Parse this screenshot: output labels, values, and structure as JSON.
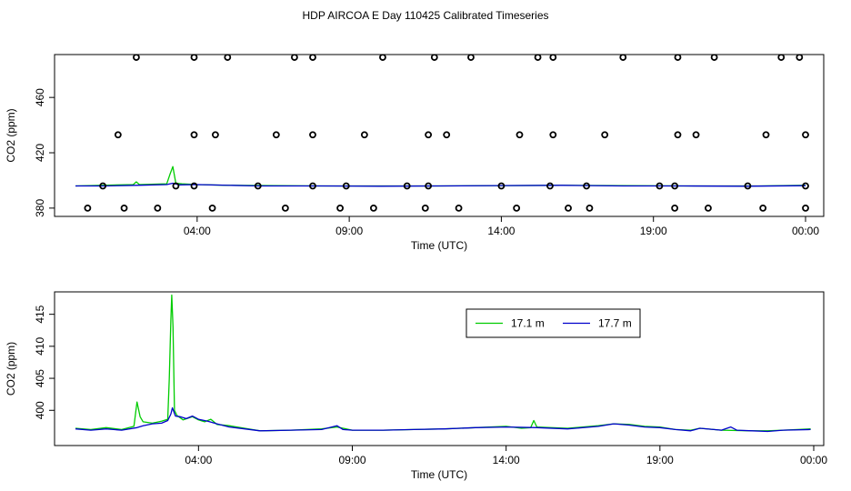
{
  "title": "HDP AIRCOA E  Day 110425  Calibrated Timeseries",
  "colors": {
    "series_green": "#00cc00",
    "series_blue": "#0000cc",
    "axis": "#000000"
  },
  "chart_data": [
    {
      "type": "scatter+line",
      "xlabel": "Time (UTC)",
      "ylabel": "CO2 (ppm)",
      "x_unit": "hours UTC",
      "xlim": [
        0,
        24
      ],
      "ylim": [
        374,
        491
      ],
      "x_ticks": [
        {
          "value": 4,
          "label": "04:00"
        },
        {
          "value": 9,
          "label": "09:00"
        },
        {
          "value": 14,
          "label": "14:00"
        },
        {
          "value": 19,
          "label": "19:00"
        },
        {
          "value": 24,
          "label": "00:00"
        }
      ],
      "y_ticks": [
        {
          "value": 380,
          "label": "380"
        },
        {
          "value": 420,
          "label": "420"
        },
        {
          "value": 460,
          "label": "460"
        }
      ],
      "calibration_points": [
        [
          0.4,
          380
        ],
        [
          1.6,
          380
        ],
        [
          2.7,
          380
        ],
        [
          4.5,
          380
        ],
        [
          6.9,
          380
        ],
        [
          8.7,
          380
        ],
        [
          9.8,
          380
        ],
        [
          11.5,
          380
        ],
        [
          12.6,
          380
        ],
        [
          14.5,
          380
        ],
        [
          16.2,
          380
        ],
        [
          16.9,
          380
        ],
        [
          19.7,
          380
        ],
        [
          20.8,
          380
        ],
        [
          22.6,
          380
        ],
        [
          24.0,
          380
        ],
        [
          0.9,
          396
        ],
        [
          3.3,
          396
        ],
        [
          3.9,
          396
        ],
        [
          6.0,
          396
        ],
        [
          7.8,
          396
        ],
        [
          8.9,
          396
        ],
        [
          10.9,
          396
        ],
        [
          11.6,
          396
        ],
        [
          14.0,
          396
        ],
        [
          15.6,
          396
        ],
        [
          16.8,
          396
        ],
        [
          19.2,
          396
        ],
        [
          19.7,
          396
        ],
        [
          22.1,
          396
        ],
        [
          24.0,
          396
        ],
        [
          1.4,
          433
        ],
        [
          3.9,
          433
        ],
        [
          4.6,
          433
        ],
        [
          6.6,
          433
        ],
        [
          7.8,
          433
        ],
        [
          9.5,
          433
        ],
        [
          11.6,
          433
        ],
        [
          12.2,
          433
        ],
        [
          14.6,
          433
        ],
        [
          15.7,
          433
        ],
        [
          17.4,
          433
        ],
        [
          19.8,
          433
        ],
        [
          20.4,
          433
        ],
        [
          22.7,
          433
        ],
        [
          24.0,
          433
        ],
        [
          2.0,
          489
        ],
        [
          3.9,
          489
        ],
        [
          5.0,
          489
        ],
        [
          7.2,
          489
        ],
        [
          7.8,
          489
        ],
        [
          10.1,
          489
        ],
        [
          11.8,
          489
        ],
        [
          13.0,
          489
        ],
        [
          15.2,
          489
        ],
        [
          15.7,
          489
        ],
        [
          18.0,
          489
        ],
        [
          19.8,
          489
        ],
        [
          21.0,
          489
        ],
        [
          23.2,
          489
        ],
        [
          23.8,
          489
        ]
      ],
      "series": [
        {
          "name": "17.1 m",
          "color": "#00cc00",
          "points": [
            [
              0,
              396
            ],
            [
              1.9,
              397
            ],
            [
              2.0,
              399
            ],
            [
              2.1,
              397
            ],
            [
              3.0,
              397.5
            ],
            [
              3.1,
              404
            ],
            [
              3.2,
              410
            ],
            [
              3.3,
              398
            ],
            [
              3.5,
              397.5
            ],
            [
              4.0,
              397
            ],
            [
              5.0,
              396.5
            ],
            [
              8.0,
              396
            ],
            [
              12,
              396
            ],
            [
              16,
              396.5
            ],
            [
              20,
              396
            ],
            [
              22.5,
              396
            ],
            [
              24,
              396.5
            ]
          ]
        },
        {
          "name": "17.7 m",
          "color": "#0000cc",
          "points": [
            [
              0,
              396
            ],
            [
              1,
              396
            ],
            [
              2,
              396.5
            ],
            [
              3,
              397
            ],
            [
              3.2,
              398
            ],
            [
              3.4,
              396.8
            ],
            [
              4,
              397
            ],
            [
              6,
              396
            ],
            [
              8,
              396
            ],
            [
              10,
              395.8
            ],
            [
              12,
              396
            ],
            [
              14,
              396.3
            ],
            [
              16,
              396.5
            ],
            [
              18,
              396
            ],
            [
              20,
              396
            ],
            [
              22,
              395.8
            ],
            [
              24,
              396.2
            ]
          ]
        }
      ]
    },
    {
      "type": "line",
      "xlabel": "Time (UTC)",
      "ylabel": "CO2 (ppm)",
      "x_unit": "hours UTC",
      "xlim": [
        0,
        24
      ],
      "ylim": [
        394.5,
        418.5
      ],
      "x_ticks": [
        {
          "value": 4,
          "label": "04:00"
        },
        {
          "value": 9,
          "label": "09:00"
        },
        {
          "value": 14,
          "label": "14:00"
        },
        {
          "value": 19,
          "label": "19:00"
        },
        {
          "value": 24,
          "label": "00:00"
        }
      ],
      "y_ticks": [
        {
          "value": 400,
          "label": "400"
        },
        {
          "value": 405,
          "label": "405"
        },
        {
          "value": 410,
          "label": "410"
        },
        {
          "value": 415,
          "label": "415"
        }
      ],
      "legend": {
        "position": "top-center",
        "entries": [
          "17.1 m",
          "17.7 m"
        ]
      },
      "series": [
        {
          "name": "17.1 m",
          "color": "#00cc00",
          "points": [
            [
              0,
              397.2
            ],
            [
              0.5,
              397.0
            ],
            [
              1.0,
              397.3
            ],
            [
              1.5,
              397.0
            ],
            [
              1.9,
              397.5
            ],
            [
              2.0,
              401.3
            ],
            [
              2.1,
              399.0
            ],
            [
              2.2,
              398.2
            ],
            [
              2.5,
              398.0
            ],
            [
              2.8,
              398.3
            ],
            [
              3.0,
              398.6
            ],
            [
              3.05,
              405
            ],
            [
              3.1,
              414
            ],
            [
              3.13,
              418
            ],
            [
              3.17,
              413
            ],
            [
              3.22,
              400
            ],
            [
              3.3,
              399.2
            ],
            [
              3.5,
              398.5
            ],
            [
              3.8,
              399.0
            ],
            [
              4.0,
              398.5
            ],
            [
              4.2,
              398.2
            ],
            [
              4.4,
              398.6
            ],
            [
              4.6,
              397.8
            ],
            [
              5.0,
              397.6
            ],
            [
              5.5,
              397.2
            ],
            [
              6.0,
              396.8
            ],
            [
              7.0,
              396.9
            ],
            [
              8.0,
              397.1
            ],
            [
              8.5,
              397.4
            ],
            [
              9.0,
              396.9
            ],
            [
              10,
              396.9
            ],
            [
              11,
              397.0
            ],
            [
              12,
              397.1
            ],
            [
              13,
              397.3
            ],
            [
              14,
              397.5
            ],
            [
              14.5,
              397.2
            ],
            [
              14.8,
              397.3
            ],
            [
              14.9,
              398.4
            ],
            [
              15.0,
              397.4
            ],
            [
              16,
              397.2
            ],
            [
              17,
              397.6
            ],
            [
              17.5,
              397.9
            ],
            [
              18,
              397.8
            ],
            [
              18.5,
              397.5
            ],
            [
              19,
              397.4
            ],
            [
              19.5,
              397.0
            ],
            [
              20,
              396.9
            ],
            [
              20.3,
              397.2
            ],
            [
              21,
              396.9
            ],
            [
              22,
              396.8
            ],
            [
              22.5,
              396.8
            ],
            [
              23,
              396.9
            ],
            [
              23.9,
              397.1
            ]
          ]
        },
        {
          "name": "17.7 m",
          "color": "#0000cc",
          "points": [
            [
              0,
              397.1
            ],
            [
              0.5,
              396.9
            ],
            [
              1.0,
              397.1
            ],
            [
              1.5,
              396.9
            ],
            [
              2.0,
              397.3
            ],
            [
              2.2,
              397.6
            ],
            [
              2.5,
              397.9
            ],
            [
              2.8,
              398.0
            ],
            [
              3.0,
              398.4
            ],
            [
              3.1,
              399.4
            ],
            [
              3.15,
              400.4
            ],
            [
              3.25,
              399.1
            ],
            [
              3.4,
              399.0
            ],
            [
              3.6,
              398.7
            ],
            [
              3.8,
              399.1
            ],
            [
              4.0,
              398.6
            ],
            [
              4.3,
              398.3
            ],
            [
              4.6,
              397.9
            ],
            [
              5.0,
              397.4
            ],
            [
              5.5,
              397.1
            ],
            [
              6.0,
              396.8
            ],
            [
              7.0,
              396.9
            ],
            [
              8.0,
              397.0
            ],
            [
              8.5,
              397.6
            ],
            [
              8.7,
              397.0
            ],
            [
              9.0,
              396.9
            ],
            [
              10,
              396.9
            ],
            [
              11,
              397.0
            ],
            [
              12,
              397.1
            ],
            [
              13,
              397.3
            ],
            [
              14,
              397.4
            ],
            [
              15,
              397.3
            ],
            [
              16,
              397.1
            ],
            [
              17,
              397.5
            ],
            [
              17.5,
              397.9
            ],
            [
              18,
              397.7
            ],
            [
              18.5,
              397.4
            ],
            [
              19,
              397.3
            ],
            [
              19.5,
              397.0
            ],
            [
              20,
              396.8
            ],
            [
              20.3,
              397.2
            ],
            [
              21,
              396.9
            ],
            [
              21.3,
              397.4
            ],
            [
              21.5,
              396.9
            ],
            [
              22,
              396.8
            ],
            [
              22.5,
              396.7
            ],
            [
              23,
              396.9
            ],
            [
              23.9,
              397.0
            ]
          ]
        }
      ]
    }
  ]
}
